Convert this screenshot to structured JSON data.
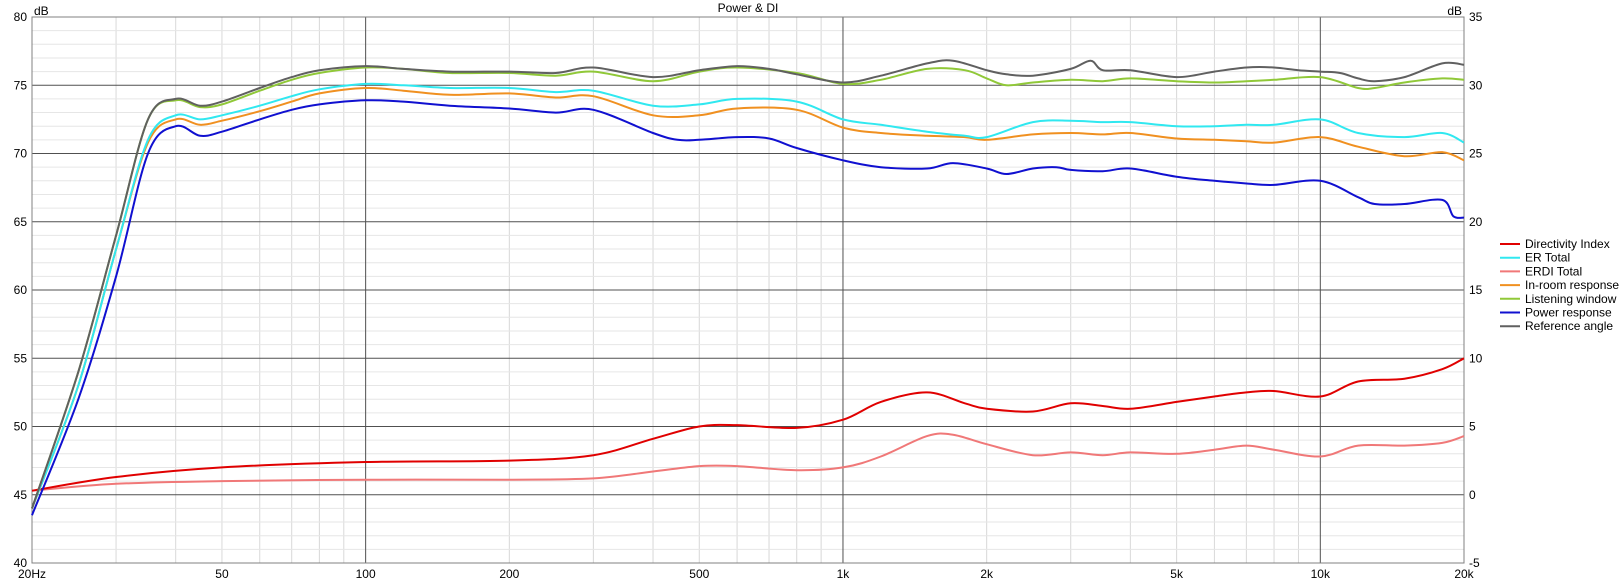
{
  "chart_data": {
    "type": "line",
    "title": "Power & DI",
    "ylabel_left": "dB",
    "ylabel_right": "dB",
    "x_scale": "log",
    "xlim": [
      20,
      20000
    ],
    "ylim_left": [
      40,
      80
    ],
    "ylim_right": [
      -5,
      35
    ],
    "x_ticks": [
      {
        "value": 20,
        "label": "20Hz"
      },
      {
        "value": 50,
        "label": "50"
      },
      {
        "value": 100,
        "label": "100"
      },
      {
        "value": 200,
        "label": "200"
      },
      {
        "value": 500,
        "label": "500"
      },
      {
        "value": 1000,
        "label": "1k"
      },
      {
        "value": 2000,
        "label": "2k"
      },
      {
        "value": 5000,
        "label": "5k"
      },
      {
        "value": 10000,
        "label": "10k"
      },
      {
        "value": 20000,
        "label": "20k"
      }
    ],
    "y_ticks_left": [
      "40",
      "45",
      "50",
      "55",
      "60",
      "65",
      "70",
      "75",
      "80"
    ],
    "y_ticks_right": [
      "-5",
      "0",
      "5",
      "10",
      "15",
      "20",
      "25",
      "30",
      "35"
    ],
    "grid": true,
    "legend_position": "right",
    "series": [
      {
        "name": "Directivity Index",
        "color": "#e00000",
        "axis": "right",
        "x": [
          20,
          30,
          50,
          100,
          200,
          300,
          400,
          500,
          600,
          800,
          1000,
          1200,
          1500,
          1800,
          2000,
          2500,
          3000,
          3500,
          4000,
          5000,
          6000,
          7000,
          8000,
          10000,
          12000,
          15000,
          18000,
          20000
        ],
        "y": [
          0.3,
          1.3,
          2.0,
          2.4,
          2.5,
          2.9,
          4.1,
          5.0,
          5.1,
          4.9,
          5.5,
          6.8,
          7.5,
          6.7,
          6.3,
          6.1,
          6.7,
          6.5,
          6.3,
          6.8,
          7.2,
          7.5,
          7.6,
          7.2,
          8.3,
          8.5,
          9.2,
          10.0
        ]
      },
      {
        "name": "ER Total",
        "color": "#30e8f0",
        "axis": "left",
        "x": [
          20,
          25,
          30,
          35,
          40,
          45,
          50,
          60,
          70,
          80,
          100,
          120,
          150,
          200,
          250,
          300,
          400,
          500,
          600,
          800,
          1000,
          1200,
          1500,
          1800,
          2000,
          2500,
          3000,
          3500,
          4000,
          5000,
          6000,
          7000,
          8000,
          10000,
          12000,
          15000,
          18000,
          20000
        ],
        "y": [
          44,
          53,
          63,
          71,
          72.8,
          72.5,
          72.8,
          73.5,
          74.2,
          74.7,
          75.1,
          75.0,
          74.8,
          74.8,
          74.5,
          74.6,
          73.5,
          73.6,
          74.0,
          73.8,
          72.5,
          72.1,
          71.6,
          71.3,
          71.2,
          72.3,
          72.4,
          72.3,
          72.3,
          72.0,
          72.0,
          72.1,
          72.1,
          72.5,
          71.5,
          71.2,
          71.5,
          70.8
        ]
      },
      {
        "name": "ERDI Total",
        "color": "#f07878",
        "axis": "right",
        "x": [
          20,
          30,
          50,
          100,
          200,
          300,
          400,
          500,
          600,
          800,
          1000,
          1200,
          1500,
          1700,
          2000,
          2500,
          3000,
          3500,
          4000,
          5000,
          6000,
          7000,
          8000,
          10000,
          12000,
          15000,
          18000,
          20000
        ],
        "y": [
          0.3,
          0.8,
          1.0,
          1.1,
          1.1,
          1.2,
          1.7,
          2.1,
          2.1,
          1.8,
          2.0,
          2.8,
          4.3,
          4.4,
          3.7,
          2.9,
          3.1,
          2.9,
          3.1,
          3.0,
          3.3,
          3.6,
          3.3,
          2.8,
          3.6,
          3.6,
          3.8,
          4.3
        ]
      },
      {
        "name": "In-room response",
        "color": "#f09020",
        "axis": "left",
        "x": [
          20,
          25,
          30,
          35,
          40,
          45,
          50,
          60,
          70,
          80,
          100,
          120,
          150,
          200,
          250,
          300,
          400,
          500,
          600,
          800,
          1000,
          1200,
          1500,
          1800,
          2000,
          2500,
          3000,
          3500,
          4000,
          5000,
          6000,
          7000,
          8000,
          10000,
          12000,
          15000,
          18000,
          20000
        ],
        "y": [
          44,
          53,
          63,
          70.8,
          72.5,
          72.1,
          72.4,
          73.1,
          73.8,
          74.4,
          74.8,
          74.6,
          74.3,
          74.4,
          74.1,
          74.2,
          72.8,
          72.8,
          73.3,
          73.2,
          71.9,
          71.5,
          71.3,
          71.2,
          71.0,
          71.4,
          71.5,
          71.4,
          71.5,
          71.1,
          71.0,
          70.9,
          70.8,
          71.2,
          70.5,
          69.8,
          70.1,
          69.5
        ]
      },
      {
        "name": "Listening window",
        "color": "#90c838",
        "axis": "left",
        "x": [
          20,
          25,
          30,
          35,
          40,
          45,
          50,
          60,
          70,
          80,
          100,
          120,
          150,
          200,
          250,
          300,
          400,
          500,
          600,
          800,
          1000,
          1200,
          1500,
          1800,
          2000,
          2200,
          2500,
          3000,
          3500,
          4000,
          5000,
          6000,
          7000,
          8000,
          10000,
          12000,
          13000,
          15000,
          18000,
          20000
        ],
        "y": [
          44,
          54,
          64,
          72.5,
          73.9,
          73.4,
          73.6,
          74.6,
          75.4,
          75.9,
          76.3,
          76.2,
          75.9,
          75.9,
          75.7,
          76.0,
          75.3,
          76.0,
          76.3,
          75.9,
          75.1,
          75.4,
          76.2,
          76.1,
          75.5,
          75.0,
          75.2,
          75.4,
          75.3,
          75.5,
          75.3,
          75.2,
          75.3,
          75.4,
          75.6,
          74.8,
          74.8,
          75.2,
          75.5,
          75.4
        ]
      },
      {
        "name": "Power response",
        "color": "#1010d0",
        "axis": "left",
        "x": [
          20,
          25,
          30,
          35,
          40,
          45,
          50,
          60,
          70,
          80,
          100,
          120,
          150,
          200,
          250,
          300,
          400,
          450,
          500,
          600,
          700,
          800,
          1000,
          1200,
          1500,
          1700,
          2000,
          2200,
          2500,
          2800,
          3000,
          3500,
          4000,
          5000,
          6000,
          7000,
          8000,
          10000,
          12000,
          13000,
          15000,
          18000,
          19000,
          20000
        ],
        "y": [
          43.5,
          52,
          61,
          70,
          72.0,
          71.3,
          71.6,
          72.5,
          73.2,
          73.6,
          73.9,
          73.8,
          73.5,
          73.3,
          73.0,
          73.2,
          71.5,
          71.0,
          71.0,
          71.2,
          71.1,
          70.4,
          69.5,
          69.0,
          68.9,
          69.3,
          68.9,
          68.5,
          68.9,
          69.0,
          68.8,
          68.7,
          68.9,
          68.3,
          68.0,
          67.8,
          67.7,
          68.0,
          66.8,
          66.3,
          66.3,
          66.6,
          65.4,
          65.3
        ]
      },
      {
        "name": "Reference angle",
        "color": "#606060",
        "axis": "left",
        "x": [
          20,
          25,
          30,
          35,
          40,
          45,
          50,
          60,
          70,
          80,
          100,
          120,
          150,
          200,
          250,
          300,
          400,
          500,
          600,
          700,
          800,
          1000,
          1200,
          1500,
          1700,
          2000,
          2200,
          2500,
          3000,
          3300,
          3500,
          4000,
          5000,
          6000,
          7000,
          8000,
          9000,
          10000,
          11000,
          12000,
          13000,
          15000,
          18000,
          20000
        ],
        "y": [
          44,
          54,
          64,
          72.5,
          74.0,
          73.5,
          73.8,
          74.8,
          75.6,
          76.1,
          76.4,
          76.2,
          76.0,
          76.0,
          75.9,
          76.3,
          75.6,
          76.1,
          76.4,
          76.2,
          75.8,
          75.2,
          75.7,
          76.6,
          76.8,
          76.1,
          75.8,
          75.7,
          76.2,
          76.8,
          76.1,
          76.1,
          75.6,
          76.0,
          76.3,
          76.3,
          76.1,
          76.0,
          75.9,
          75.5,
          75.3,
          75.6,
          76.6,
          76.5
        ]
      }
    ]
  }
}
